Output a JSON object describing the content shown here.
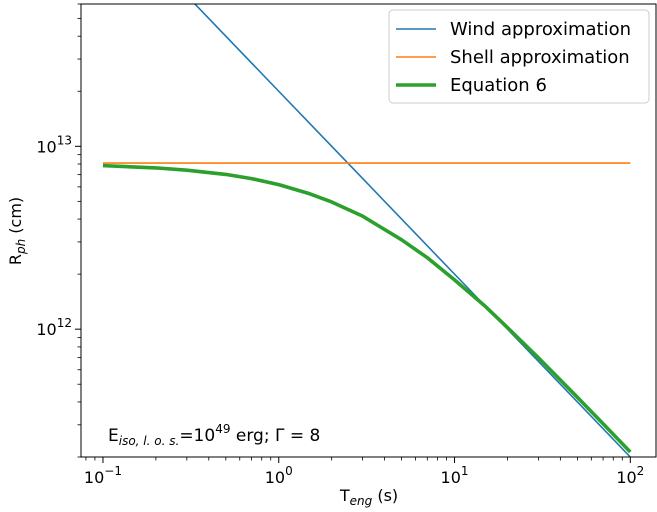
{
  "chart_data": {
    "type": "line",
    "xscale": "log",
    "yscale": "log",
    "xlim": [
      0.075,
      140
    ],
    "ylim": [
      200000000000.0,
      60000000000000.0
    ],
    "x_ticks": [
      {
        "value": 0.1,
        "base": "10",
        "exp": "−1"
      },
      {
        "value": 1,
        "base": "10",
        "exp": "0"
      },
      {
        "value": 10,
        "base": "10",
        "exp": "1"
      },
      {
        "value": 100,
        "base": "10",
        "exp": "2"
      }
    ],
    "y_ticks": [
      {
        "value": 1000000000000.0,
        "base": "10",
        "exp": "12"
      },
      {
        "value": 10000000000000.0,
        "base": "10",
        "exp": "13"
      }
    ],
    "xlabel": {
      "main": "T",
      "sub": "eng",
      "rest": " (s)"
    },
    "ylabel": {
      "main": "R",
      "sub": "ph",
      "rest": " (cm)"
    },
    "annotation": {
      "pre": "E",
      "sub": "iso, l. o. s.",
      "mid": "=10",
      "sup": "49",
      "post": " erg; Γ = 8"
    },
    "legend_position": "top-right",
    "series": [
      {
        "name": "Wind approximation",
        "color": "#1f77b4",
        "x": [
          0.1,
          0.3,
          1,
          3,
          10,
          30,
          100
        ],
        "y": [
          200000000000000.0,
          66700000000000.0,
          20000000000000.0,
          6670000000000.0,
          2000000000000.0,
          667000000000.0,
          200000000000.0
        ]
      },
      {
        "name": "Shell approximation",
        "color": "#ff7f0e",
        "x": [
          0.1,
          1,
          10,
          100
        ],
        "y": [
          8100000000000.0,
          8100000000000.0,
          8100000000000.0,
          8100000000000.0
        ]
      },
      {
        "name": "Equation 6",
        "color": "#2ca02c",
        "x": [
          0.1,
          0.2,
          0.3,
          0.5,
          0.7,
          1,
          1.5,
          2,
          3,
          5,
          7,
          10,
          15,
          20,
          30,
          50,
          70,
          100
        ],
        "y": [
          7840000000000.0,
          7620000000000.0,
          7400000000000.0,
          7020000000000.0,
          6660000000000.0,
          6170000000000.0,
          5500000000000.0,
          4960000000000.0,
          4150000000000.0,
          3080000000000.0,
          2460000000000.0,
          1860000000000.0,
          1330000000000.0,
          1020000000000.0,
          698000000000.0,
          424000000000.0,
          304000000000.0,
          213000000000.0
        ]
      }
    ]
  }
}
